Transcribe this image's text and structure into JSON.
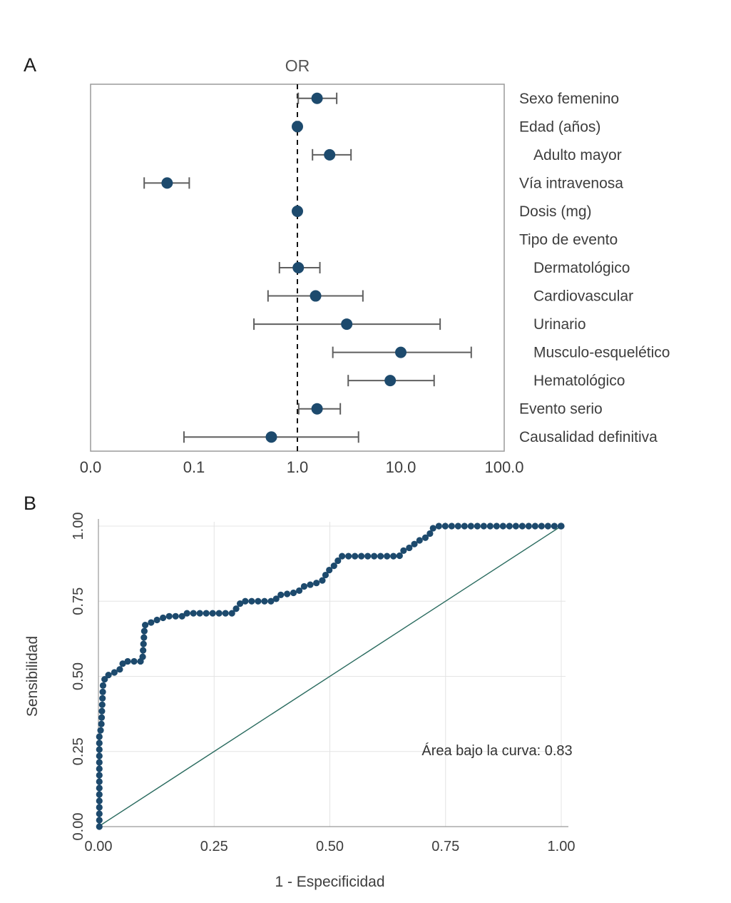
{
  "figure": {
    "background": "#ffffff"
  },
  "panelA": {
    "label": "A"
  },
  "panelB": {
    "label": "B"
  },
  "colors": {
    "point": "#1d4a6d",
    "error_bar": "#5f5f5f",
    "diagonal": "#2a6b5f",
    "grid": "#e4e4e4",
    "axis_line": "#999999",
    "axis_text": "#3d3d3d",
    "title_text": "#555555",
    "reference_line": "#111111",
    "border": "#9a9a9a"
  },
  "chart_data": [
    {
      "type": "scatter",
      "subtype": "forest_plot",
      "title": "OR",
      "x_scale": "log10",
      "x_ticks": [
        {
          "label": "0.0",
          "log": -2
        },
        {
          "label": "0.1",
          "log": -1
        },
        {
          "label": "1.0",
          "log": 0
        },
        {
          "label": "10.0",
          "log": 1
        },
        {
          "label": "100.0",
          "log": 2
        }
      ],
      "reference_line": 1.0,
      "rows": [
        {
          "label": "Sexo femenino",
          "indent": false,
          "or": 1.55,
          "ci_low": 1.02,
          "ci_high": 2.4
        },
        {
          "label": "Edad (años)",
          "indent": false,
          "or": 1.0,
          "ci_low": 0.97,
          "ci_high": 1.04
        },
        {
          "label": "Adulto mayor",
          "indent": true,
          "or": 2.05,
          "ci_low": 1.4,
          "ci_high": 3.3
        },
        {
          "label": "Vía intravenosa",
          "indent": false,
          "or": 0.055,
          "ci_low": 0.033,
          "ci_high": 0.09
        },
        {
          "label": "Dosis (mg)",
          "indent": false,
          "or": 1.0,
          "ci_low": 0.98,
          "ci_high": 1.02
        },
        {
          "label": "Tipo de evento",
          "indent": false,
          "or": null,
          "ci_low": null,
          "ci_high": null
        },
        {
          "label": "Dermatológico",
          "indent": true,
          "or": 1.02,
          "ci_low": 0.67,
          "ci_high": 1.65
        },
        {
          "label": "Cardiovascular",
          "indent": true,
          "or": 1.5,
          "ci_low": 0.52,
          "ci_high": 4.3
        },
        {
          "label": "Urinario",
          "indent": true,
          "or": 3.0,
          "ci_low": 0.38,
          "ci_high": 24
        },
        {
          "label": "Musculo-esquelético",
          "indent": true,
          "or": 10.0,
          "ci_low": 2.2,
          "ci_high": 48
        },
        {
          "label": "Hematológico",
          "indent": true,
          "or": 7.9,
          "ci_low": 3.1,
          "ci_high": 21
        },
        {
          "label": "Evento serio",
          "indent": false,
          "or": 1.55,
          "ci_low": 1.03,
          "ci_high": 2.6
        },
        {
          "label": "Causalidad definitiva",
          "indent": false,
          "or": 0.56,
          "ci_low": 0.08,
          "ci_high": 3.9
        }
      ]
    },
    {
      "type": "line",
      "subtype": "roc_curve",
      "xlabel": "1 - Especificidad",
      "ylabel": "Sensibilidad",
      "x_ticks": [
        "0.00",
        "0.25",
        "0.50",
        "0.75",
        "1.00"
      ],
      "y_ticks": [
        "0.00",
        "0.25",
        "0.50",
        "0.75",
        "1.00"
      ],
      "xlim": [
        0,
        1
      ],
      "ylim": [
        0,
        1
      ],
      "auc": 0.83,
      "annotation": "Área bajo la curva: 0.83",
      "diagonal_reference": [
        [
          0,
          0
        ],
        [
          1,
          1
        ]
      ],
      "roc_points": [
        [
          0.002,
          0.0
        ],
        [
          0.002,
          0.3
        ],
        [
          0.006,
          0.33
        ],
        [
          0.008,
          0.4
        ],
        [
          0.01,
          0.47
        ],
        [
          0.015,
          0.5
        ],
        [
          0.03,
          0.51
        ],
        [
          0.045,
          0.52
        ],
        [
          0.055,
          0.55
        ],
        [
          0.095,
          0.55
        ],
        [
          0.1,
          0.67
        ],
        [
          0.115,
          0.68
        ],
        [
          0.13,
          0.69
        ],
        [
          0.15,
          0.7
        ],
        [
          0.185,
          0.7
        ],
        [
          0.19,
          0.71
        ],
        [
          0.29,
          0.71
        ],
        [
          0.3,
          0.73
        ],
        [
          0.31,
          0.75
        ],
        [
          0.38,
          0.75
        ],
        [
          0.39,
          0.77
        ],
        [
          0.43,
          0.78
        ],
        [
          0.445,
          0.8
        ],
        [
          0.47,
          0.81
        ],
        [
          0.485,
          0.82
        ],
        [
          0.495,
          0.85
        ],
        [
          0.505,
          0.86
        ],
        [
          0.515,
          0.88
        ],
        [
          0.525,
          0.9
        ],
        [
          0.65,
          0.9
        ],
        [
          0.66,
          0.92
        ],
        [
          0.675,
          0.93
        ],
        [
          0.69,
          0.95
        ],
        [
          0.705,
          0.96
        ],
        [
          0.715,
          0.97
        ],
        [
          0.72,
          0.99
        ],
        [
          0.73,
          1.0
        ],
        [
          1.0,
          1.0
        ]
      ]
    }
  ]
}
